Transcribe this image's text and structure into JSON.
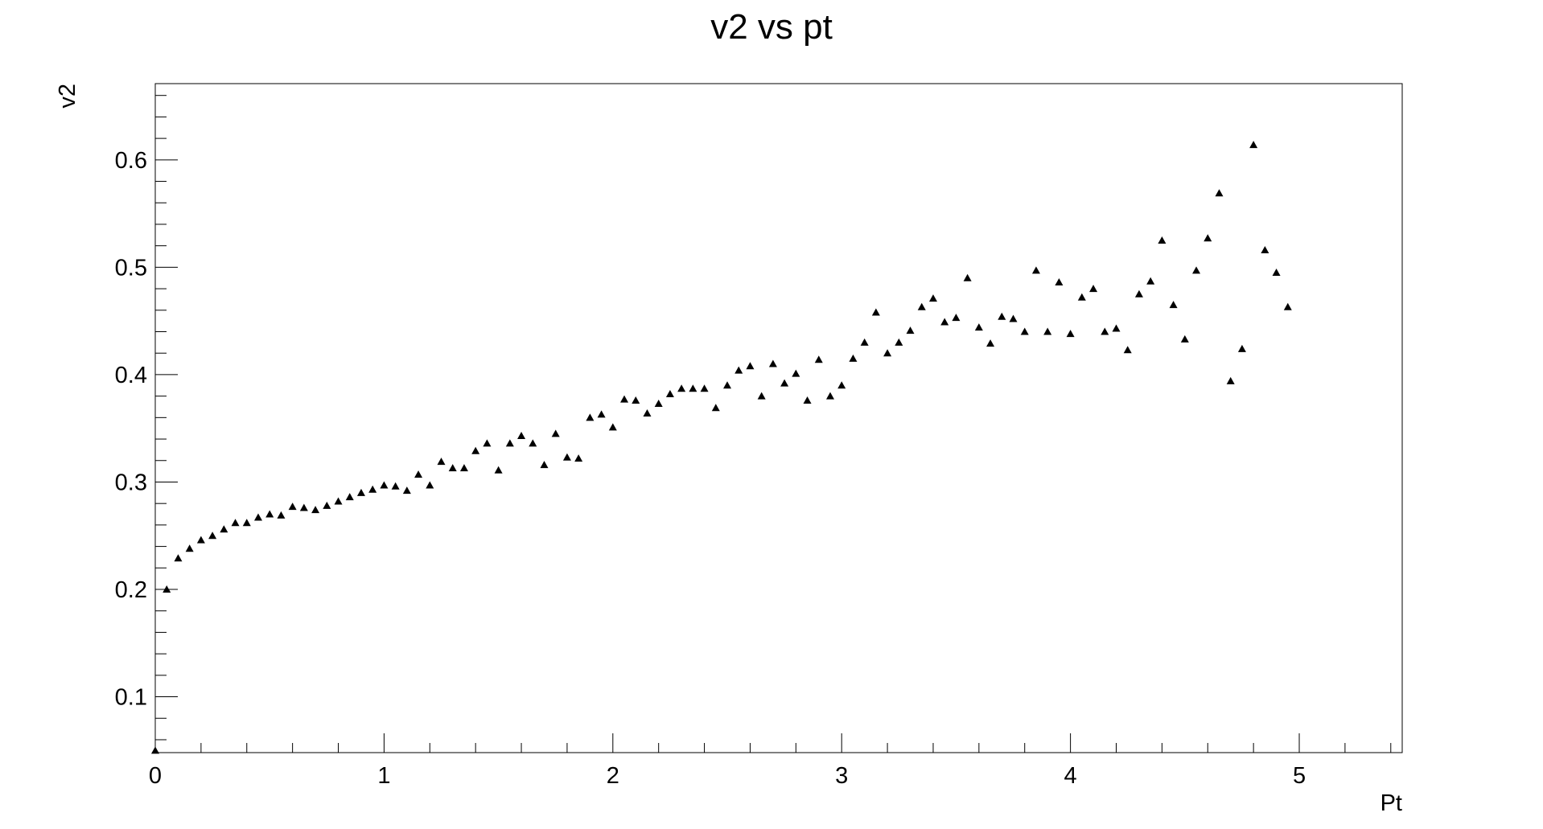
{
  "chart_data": {
    "type": "scatter",
    "title": "v2 vs pt",
    "xlabel": "Pt",
    "ylabel": "v2",
    "xlim": [
      0,
      5.45
    ],
    "ylim": [
      0.048,
      0.671
    ],
    "xticks": [
      0,
      1,
      2,
      3,
      4,
      5
    ],
    "yticks": [
      0.1,
      0.2,
      0.3,
      0.4,
      0.5,
      0.6
    ],
    "grid": false,
    "marker": "filled-triangle-up",
    "marker_color": "#000000",
    "series": [
      {
        "x": [
          0.0,
          0.05,
          0.1,
          0.15,
          0.2,
          0.25,
          0.3,
          0.35,
          0.4,
          0.45,
          0.5,
          0.55,
          0.6,
          0.65,
          0.7,
          0.75,
          0.8,
          0.85,
          0.9,
          0.95,
          1.0,
          1.05,
          1.1,
          1.15,
          1.2,
          1.25,
          1.3,
          1.35,
          1.4,
          1.45,
          1.5,
          1.55,
          1.6,
          1.65,
          1.7,
          1.75,
          1.8,
          1.85,
          1.9,
          1.95,
          2.0,
          2.05,
          2.1,
          2.15,
          2.2,
          2.25,
          2.3,
          2.35,
          2.4,
          2.45,
          2.5,
          2.55,
          2.6,
          2.65,
          2.7,
          2.75,
          2.8,
          2.85,
          2.9,
          2.95,
          3.0,
          3.05,
          3.1,
          3.15,
          3.2,
          3.25,
          3.3,
          3.35,
          3.4,
          3.45,
          3.5,
          3.55,
          3.6,
          3.65,
          3.7,
          3.75,
          3.8,
          3.85,
          3.9,
          3.95,
          4.0,
          4.05,
          4.1,
          4.15,
          4.2,
          4.25,
          4.3,
          4.35,
          4.4,
          4.45,
          4.5,
          4.55,
          4.6,
          4.65,
          4.7,
          4.75,
          4.8,
          4.85,
          4.9,
          4.95
        ],
        "y": [
          0.05,
          0.2,
          0.229,
          0.238,
          0.246,
          0.25,
          0.256,
          0.262,
          0.262,
          0.267,
          0.27,
          0.269,
          0.277,
          0.276,
          0.274,
          0.278,
          0.282,
          0.286,
          0.29,
          0.293,
          0.297,
          0.296,
          0.292,
          0.307,
          0.297,
          0.319,
          0.313,
          0.313,
          0.329,
          0.336,
          0.311,
          0.336,
          0.343,
          0.336,
          0.316,
          0.345,
          0.323,
          0.322,
          0.36,
          0.363,
          0.351,
          0.377,
          0.376,
          0.364,
          0.373,
          0.382,
          0.387,
          0.387,
          0.387,
          0.369,
          0.39,
          0.404,
          0.408,
          0.38,
          0.41,
          0.392,
          0.401,
          0.376,
          0.414,
          0.38,
          0.39,
          0.415,
          0.43,
          0.458,
          0.42,
          0.43,
          0.441,
          0.463,
          0.471,
          0.449,
          0.453,
          0.49,
          0.444,
          0.429,
          0.454,
          0.452,
          0.44,
          0.497,
          0.44,
          0.486,
          0.438,
          0.472,
          0.48,
          0.44,
          0.443,
          0.423,
          0.475,
          0.487,
          0.525,
          0.465,
          0.433,
          0.497,
          0.527,
          0.569,
          0.394,
          0.424,
          0.614,
          0.516,
          0.495,
          0.463
        ]
      }
    ]
  }
}
